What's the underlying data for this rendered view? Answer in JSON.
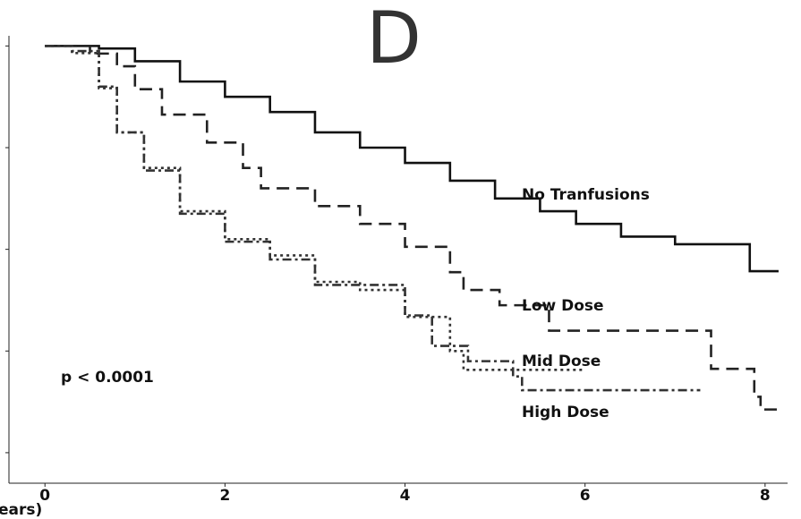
{
  "chart_data": {
    "type": "line",
    "step": true,
    "title": "D",
    "x_label": "ears)",
    "annotation": "p < 0.0001",
    "xlim": [
      -0.4,
      8.25
    ],
    "ylim": [
      0.14,
      1.02
    ],
    "xticks": [
      0,
      2,
      4,
      6,
      8
    ],
    "yticks": [
      0.2,
      0.4,
      0.6,
      0.8,
      1.0
    ],
    "series": [
      {
        "name": "No Tranfusions",
        "color": "#111111",
        "dash": "none",
        "x": [
          0,
          0.6,
          1.0,
          1.5,
          2.0,
          2.5,
          3.0,
          3.5,
          4.0,
          4.5,
          5.0,
          5.5,
          5.9,
          6.4,
          7.0,
          7.83,
          8.15
        ],
        "values": [
          1.0,
          0.995,
          0.97,
          0.93,
          0.9,
          0.87,
          0.83,
          0.8,
          0.77,
          0.735,
          0.7,
          0.675,
          0.65,
          0.625,
          0.61,
          0.557,
          0.557
        ]
      },
      {
        "name": "Low Dose",
        "color": "#222222",
        "dash": "14,8",
        "x": [
          0,
          0.5,
          0.8,
          1.0,
          1.3,
          1.8,
          2.2,
          2.4,
          3.0,
          3.5,
          4.0,
          4.5,
          4.65,
          5.05,
          5.6,
          7.4,
          7.88,
          7.95,
          8.15
        ],
        "values": [
          1.0,
          0.985,
          0.96,
          0.915,
          0.865,
          0.81,
          0.76,
          0.72,
          0.685,
          0.65,
          0.605,
          0.555,
          0.52,
          0.49,
          0.44,
          0.365,
          0.31,
          0.285,
          0.285
        ]
      },
      {
        "name": "Mid Dose",
        "color": "#333333",
        "dash": "3,4",
        "x": [
          0,
          0.3,
          0.6,
          0.8,
          1.1,
          1.5,
          2.0,
          2.5,
          3.0,
          3.5,
          4.0,
          4.5,
          4.65,
          6.0
        ],
        "values": [
          1.0,
          0.986,
          0.917,
          0.83,
          0.76,
          0.675,
          0.62,
          0.588,
          0.536,
          0.52,
          0.467,
          0.4,
          0.363,
          0.363
        ]
      },
      {
        "name": "High Dose",
        "color": "#333333",
        "dash": "10,4,3,4",
        "x": [
          0,
          0.3,
          0.6,
          0.8,
          1.1,
          1.5,
          2.0,
          2.5,
          3.0,
          3.5,
          4.0,
          4.3,
          4.7,
          5.2,
          5.3,
          7.28
        ],
        "values": [
          1.0,
          0.99,
          0.92,
          0.83,
          0.755,
          0.67,
          0.615,
          0.58,
          0.53,
          0.53,
          0.47,
          0.41,
          0.38,
          0.35,
          0.323,
          0.323
        ]
      }
    ]
  }
}
